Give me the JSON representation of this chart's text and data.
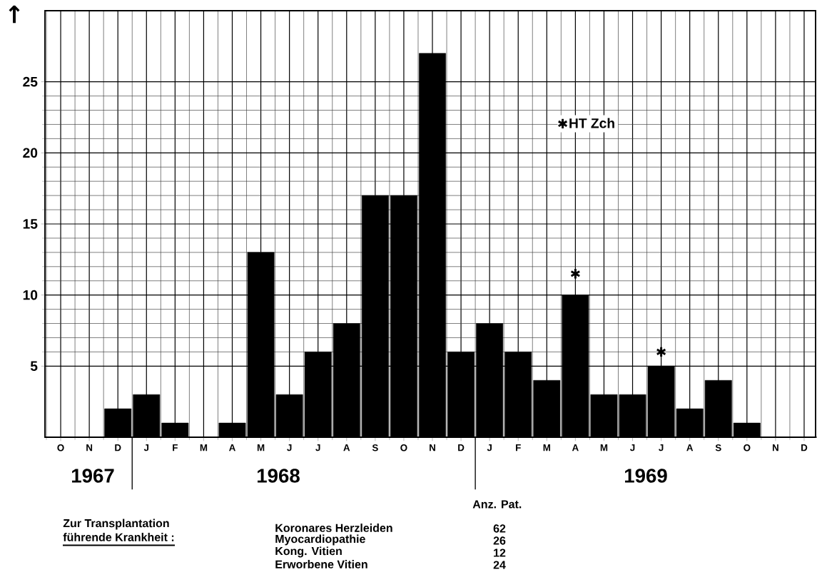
{
  "chart_data": {
    "type": "bar",
    "categories": [
      "O",
      "N",
      "D",
      "J",
      "F",
      "M",
      "A",
      "M",
      "J",
      "J",
      "A",
      "S",
      "O",
      "N",
      "D",
      "J",
      "F",
      "M",
      "A",
      "M",
      "J",
      "J",
      "A",
      "S",
      "O",
      "N",
      "D"
    ],
    "values": [
      0,
      0,
      2,
      3,
      1,
      0,
      1,
      13,
      3,
      6,
      8,
      17,
      17,
      27,
      6,
      8,
      6,
      4,
      10,
      3,
      3,
      5,
      2,
      4,
      1,
      0,
      0
    ],
    "color": "#000000",
    "series": [
      {
        "name": "HT Zch",
        "type": "scatter",
        "color": "#000000",
        "marker": "cross",
        "values": [
          null,
          null,
          null,
          null,
          null,
          null,
          null,
          null,
          null,
          null,
          null,
          null,
          null,
          null,
          null,
          null,
          null,
          null,
          11.5,
          null,
          null,
          6,
          null,
          null,
          null,
          null,
          null
        ]
      }
    ],
    "ylim": [
      0,
      30
    ],
    "yticks": [
      5,
      10,
      15,
      20,
      25
    ],
    "grid": true,
    "legend": "top right",
    "annotations": [
      "↑",
      "1967",
      "1968",
      "1969",
      "Zur Transplantation",
      "führende Krankheit :",
      "Anz. Pat.",
      "Koronares Herzleiden",
      "Myocardiopathie",
      "Kong. Vitien",
      "Erworbene Vitien",
      "62",
      "26",
      "12",
      "24"
    ]
  }
}
